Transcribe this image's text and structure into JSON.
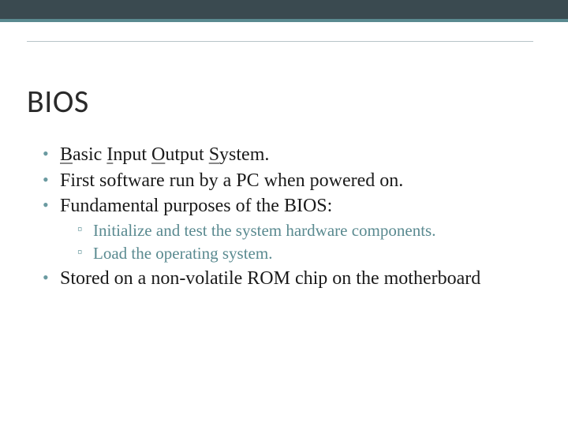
{
  "colors": {
    "band_dark": "#3a4a50",
    "band_teal": "#5a8a90",
    "hr": "#b8c4c8",
    "title": "#2a2a2a",
    "body_text": "#1a1a1a",
    "sub_text": "#5a8a90",
    "bullet_marker": "#6a9aa0",
    "background": "#ffffff"
  },
  "typography": {
    "title_font": "Calibri",
    "body_font": "Georgia",
    "title_size_pt": 30,
    "bullet_size_pt": 18,
    "sub_bullet_size_pt": 16
  },
  "slide": {
    "title": "BIOS",
    "bullets": [
      {
        "segments": [
          {
            "t": "B",
            "u": true
          },
          {
            "t": "asic "
          },
          {
            "t": "I",
            "u": true
          },
          {
            "t": "nput "
          },
          {
            "t": "O",
            "u": true
          },
          {
            "t": "utput "
          },
          {
            "t": "S",
            "u": true
          },
          {
            "t": "ystem."
          }
        ]
      },
      {
        "text": "First software run by a PC when powered on."
      },
      {
        "text": "Fundamental purposes of the BIOS:",
        "sub": [
          "Initialize and test the system hardware components.",
          "Load the operating system."
        ]
      },
      {
        "text": "Stored on a non-volatile ROM chip on the motherboard"
      }
    ]
  }
}
